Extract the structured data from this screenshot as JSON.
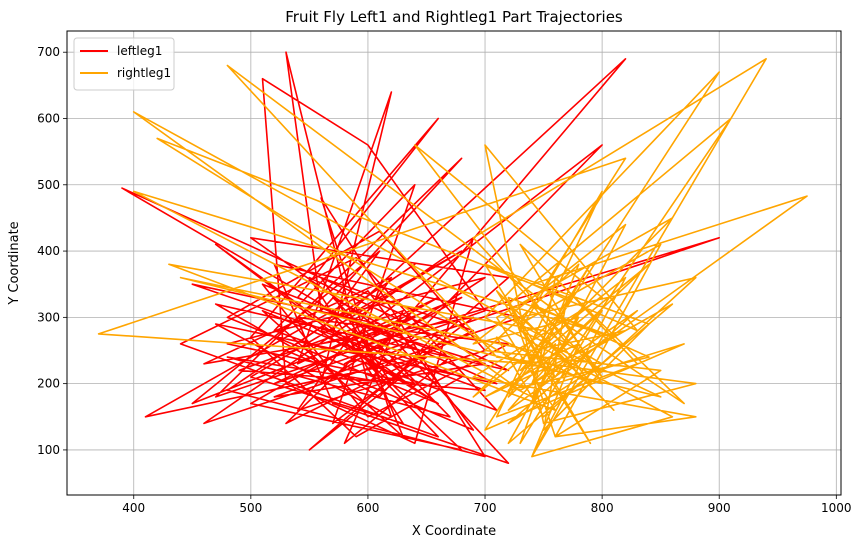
{
  "chart_data": {
    "type": "line",
    "title": "Fruit Fly Left1 and Rightleg1 Part Trajectories",
    "xlabel": "X Coordinate",
    "ylabel": "Y Coordinate",
    "xlim": [
      343,
      1004
    ],
    "ylim": [
      32,
      732
    ],
    "x_ticks": [
      400,
      500,
      600,
      700,
      800,
      900,
      1000
    ],
    "y_ticks": [
      100,
      200,
      300,
      400,
      500,
      600,
      700
    ],
    "grid": true,
    "legend_position": "top-left",
    "series": [
      {
        "name": "leftleg1",
        "color": "#ff0000",
        "points": [
          [
            560,
            260
          ],
          [
            640,
            300
          ],
          [
            520,
            200
          ],
          [
            700,
            310
          ],
          [
            600,
            560
          ],
          [
            510,
            660
          ],
          [
            530,
            200
          ],
          [
            640,
            110
          ],
          [
            690,
            420
          ],
          [
            460,
            140
          ],
          [
            730,
            300
          ],
          [
            520,
            380
          ],
          [
            570,
            170
          ],
          [
            720,
            80
          ],
          [
            610,
            290
          ],
          [
            450,
            350
          ],
          [
            680,
            210
          ],
          [
            590,
            120
          ],
          [
            500,
            270
          ],
          [
            660,
            600
          ],
          [
            540,
            330
          ],
          [
            710,
            200
          ],
          [
            470,
            290
          ],
          [
            620,
            150
          ],
          [
            560,
            480
          ],
          [
            700,
            90
          ],
          [
            480,
            190
          ],
          [
            640,
            380
          ],
          [
            530,
            250
          ],
          [
            690,
            130
          ],
          [
            600,
            340
          ],
          [
            410,
            150
          ],
          [
            650,
            240
          ],
          [
            550,
            100
          ],
          [
            720,
            360
          ],
          [
            500,
            420
          ],
          [
            620,
            270
          ],
          [
            470,
            180
          ],
          [
            680,
            540
          ],
          [
            560,
            310
          ],
          [
            530,
            700
          ],
          [
            600,
            200
          ],
          [
            800,
            560
          ],
          [
            580,
            260
          ],
          [
            660,
            170
          ],
          [
            480,
            300
          ],
          [
            610,
            430
          ],
          [
            700,
            250
          ],
          [
            540,
            160
          ],
          [
            620,
            360
          ],
          [
            460,
            230
          ],
          [
            690,
            300
          ],
          [
            570,
            140
          ],
          [
            640,
            500
          ],
          [
            520,
            280
          ],
          [
            710,
            160
          ],
          [
            590,
            390
          ],
          [
            440,
            260
          ],
          [
            660,
            120
          ],
          [
            600,
            230
          ],
          [
            820,
            690
          ],
          [
            580,
            300
          ],
          [
            680,
            400
          ],
          [
            500,
            210
          ],
          [
            630,
            140
          ],
          [
            550,
            360
          ],
          [
            720,
            220
          ],
          [
            470,
            320
          ],
          [
            610,
            180
          ],
          [
            660,
            280
          ],
          [
            390,
            495
          ],
          [
            560,
            320
          ],
          [
            640,
            200
          ],
          [
            480,
            260
          ],
          [
            700,
            360
          ],
          [
            560,
            200
          ],
          [
            620,
            640
          ],
          [
            540,
            230
          ],
          [
            660,
            330
          ],
          [
            500,
            170
          ],
          [
            680,
            100
          ],
          [
            590,
            250
          ],
          [
            470,
            410
          ],
          [
            650,
            180
          ],
          [
            540,
            300
          ],
          [
            720,
            260
          ],
          [
            600,
            150
          ],
          [
            510,
            350
          ],
          [
            670,
            240
          ],
          [
            580,
            110
          ],
          [
            630,
            310
          ],
          [
            490,
            220
          ],
          [
            700,
            190
          ],
          [
            560,
            280
          ],
          [
            610,
            400
          ],
          [
            450,
            170
          ],
          [
            680,
            330
          ],
          [
            580,
            230
          ],
          [
            900,
            420
          ],
          [
            600,
            260
          ],
          [
            530,
            140
          ],
          [
            690,
            280
          ],
          [
            560,
            360
          ],
          [
            620,
            200
          ],
          [
            480,
            240
          ],
          [
            670,
            150
          ],
          [
            570,
            330
          ],
          [
            640,
            260
          ],
          [
            520,
            180
          ],
          [
            700,
            230
          ],
          [
            590,
            290
          ],
          [
            630,
            120
          ],
          [
            510,
            310
          ],
          [
            660,
            200
          ],
          [
            580,
            260
          ]
        ]
      },
      {
        "name": "rightleg1",
        "color": "#ffa500",
        "points": [
          [
            750,
            250
          ],
          [
            840,
            380
          ],
          [
            720,
            180
          ],
          [
            900,
            670
          ],
          [
            700,
            300
          ],
          [
            860,
            150
          ],
          [
            740,
            90
          ],
          [
            940,
            690
          ],
          [
            690,
            420
          ],
          [
            800,
            210
          ],
          [
            760,
            310
          ],
          [
            480,
            680
          ],
          [
            710,
            240
          ],
          [
            880,
            200
          ],
          [
            750,
            140
          ],
          [
            700,
            560
          ],
          [
            830,
            280
          ],
          [
            740,
            350
          ],
          [
            975,
            483
          ],
          [
            720,
            160
          ],
          [
            770,
            260
          ],
          [
            640,
            560
          ],
          [
            800,
            330
          ],
          [
            690,
            210
          ],
          [
            880,
            150
          ],
          [
            760,
            120
          ],
          [
            850,
            410
          ],
          [
            730,
            290
          ],
          [
            820,
            540
          ],
          [
            370,
            275
          ],
          [
            740,
            230
          ],
          [
            790,
            380
          ],
          [
            700,
            130
          ],
          [
            870,
            260
          ],
          [
            760,
            200
          ],
          [
            710,
            340
          ],
          [
            810,
            160
          ],
          [
            750,
            270
          ],
          [
            400,
            610
          ],
          [
            730,
            190
          ],
          [
            860,
            320
          ],
          [
            720,
            110
          ],
          [
            780,
            300
          ],
          [
            690,
            260
          ],
          [
            820,
            440
          ],
          [
            740,
            170
          ],
          [
            760,
            360
          ],
          [
            830,
            230
          ],
          [
            710,
            150
          ],
          [
            800,
            490
          ],
          [
            730,
            280
          ],
          [
            850,
            180
          ],
          [
            440,
            360
          ],
          [
            740,
            250
          ],
          [
            790,
            110
          ],
          [
            720,
            320
          ],
          [
            910,
            600
          ],
          [
            760,
            210
          ],
          [
            700,
            380
          ],
          [
            840,
            290
          ],
          [
            750,
            130
          ],
          [
            770,
            330
          ],
          [
            420,
            570
          ],
          [
            720,
            240
          ],
          [
            800,
            200
          ],
          [
            730,
            410
          ],
          [
            870,
            170
          ],
          [
            760,
            300
          ],
          [
            690,
            180
          ],
          [
            820,
            360
          ],
          [
            740,
            90
          ],
          [
            780,
            260
          ],
          [
            730,
            220
          ],
          [
            860,
            450
          ],
          [
            710,
            300
          ],
          [
            760,
            160
          ],
          [
            430,
            380
          ],
          [
            750,
            280
          ],
          [
            800,
            230
          ],
          [
            720,
            140
          ],
          [
            830,
            310
          ],
          [
            740,
            200
          ],
          [
            780,
            380
          ],
          [
            700,
            250
          ],
          [
            850,
            220
          ],
          [
            760,
            120
          ],
          [
            720,
            330
          ],
          [
            810,
            270
          ],
          [
            400,
            490
          ],
          [
            740,
            180
          ],
          [
            770,
            240
          ],
          [
            730,
            300
          ],
          [
            880,
            360
          ],
          [
            750,
            150
          ],
          [
            710,
            270
          ],
          [
            790,
            200
          ],
          [
            740,
            320
          ],
          [
            840,
            240
          ],
          [
            720,
            190
          ],
          [
            760,
            260
          ],
          [
            730,
            110
          ],
          [
            800,
            310
          ],
          [
            750,
            230
          ],
          [
            700,
            180
          ],
          [
            820,
            280
          ],
          [
            740,
            250
          ]
        ]
      }
    ]
  }
}
